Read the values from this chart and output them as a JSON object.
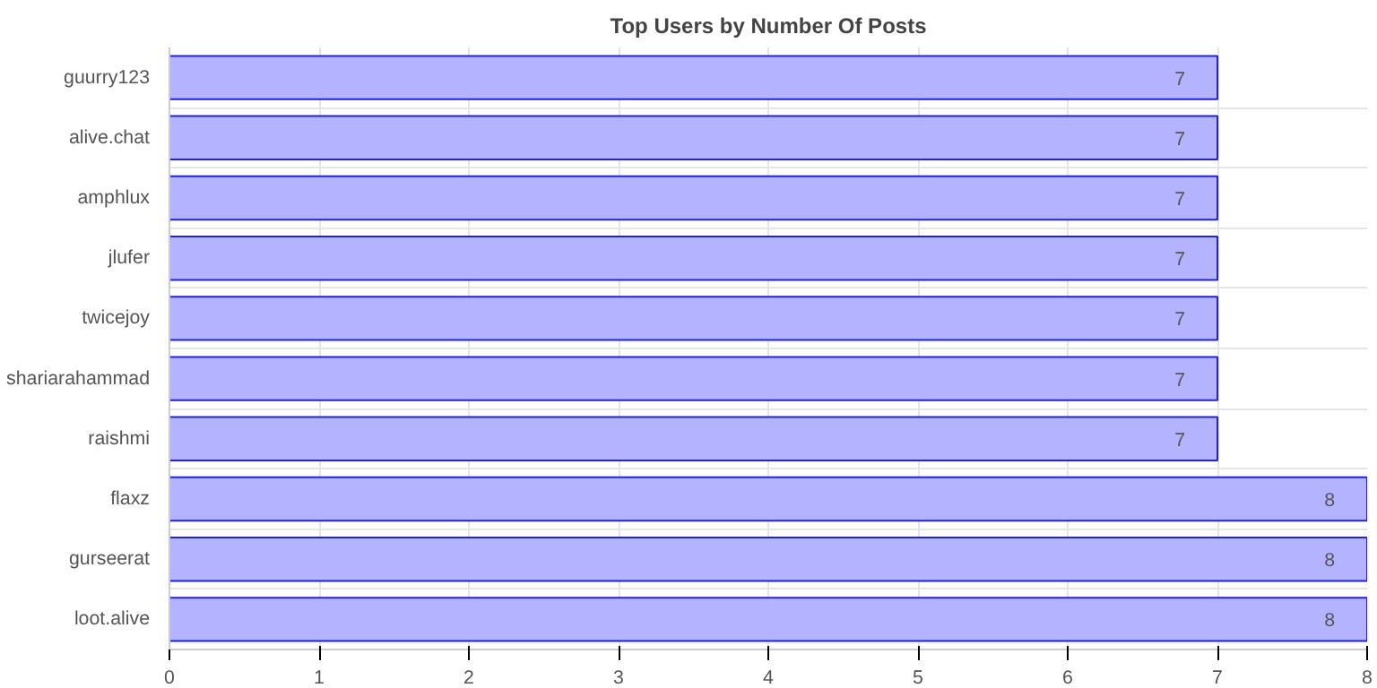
{
  "chart_data": {
    "type": "bar",
    "orientation": "horizontal",
    "title": "Top Users by Number Of Posts",
    "categories": [
      "guurry123",
      "alive.chat",
      "amphlux",
      "jlufer",
      "twicejoy",
      "shariarahammad",
      "raishmi",
      "flaxz",
      "gurseerat",
      "loot.alive"
    ],
    "values": [
      7,
      7,
      7,
      7,
      7,
      7,
      7,
      8,
      8,
      8
    ],
    "color": "#b3b3ff",
    "xlim": [
      0,
      8
    ],
    "xticks": [
      0,
      1,
      2,
      3,
      4,
      5,
      6,
      7,
      8
    ],
    "grid": true,
    "data_labels": true
  }
}
